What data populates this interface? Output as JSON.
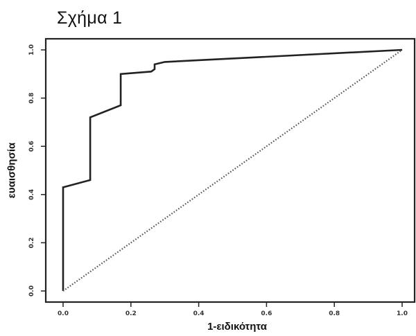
{
  "figure": {
    "title": "Σχήμα 1"
  },
  "chart_data": {
    "type": "line",
    "title": "",
    "xlabel": "1-ειδικότητα",
    "ylabel": "ευαισθησία",
    "xlim": [
      0,
      1
    ],
    "ylim": [
      0,
      1
    ],
    "x_ticks": [
      "0.0",
      "0.2",
      "0.4",
      "0.6",
      "0.8",
      "1.0"
    ],
    "y_ticks": [
      "0.0",
      "0.2",
      "0.4",
      "0.6",
      "0.8",
      "1.0"
    ],
    "grid": false,
    "legend": false,
    "series": [
      {
        "style": "solid",
        "color": "#222222",
        "x": [
          0.0,
          0.0,
          0.08,
          0.08,
          0.17,
          0.17,
          0.26,
          0.27,
          0.27,
          0.3,
          1.0
        ],
        "y": [
          0.0,
          0.43,
          0.46,
          0.72,
          0.77,
          0.9,
          0.91,
          0.92,
          0.94,
          0.95,
          1.0
        ]
      },
      {
        "style": "dotted",
        "color": "#555555",
        "x": [
          0.0,
          1.0
        ],
        "y": [
          0.0,
          1.0
        ]
      }
    ]
  }
}
